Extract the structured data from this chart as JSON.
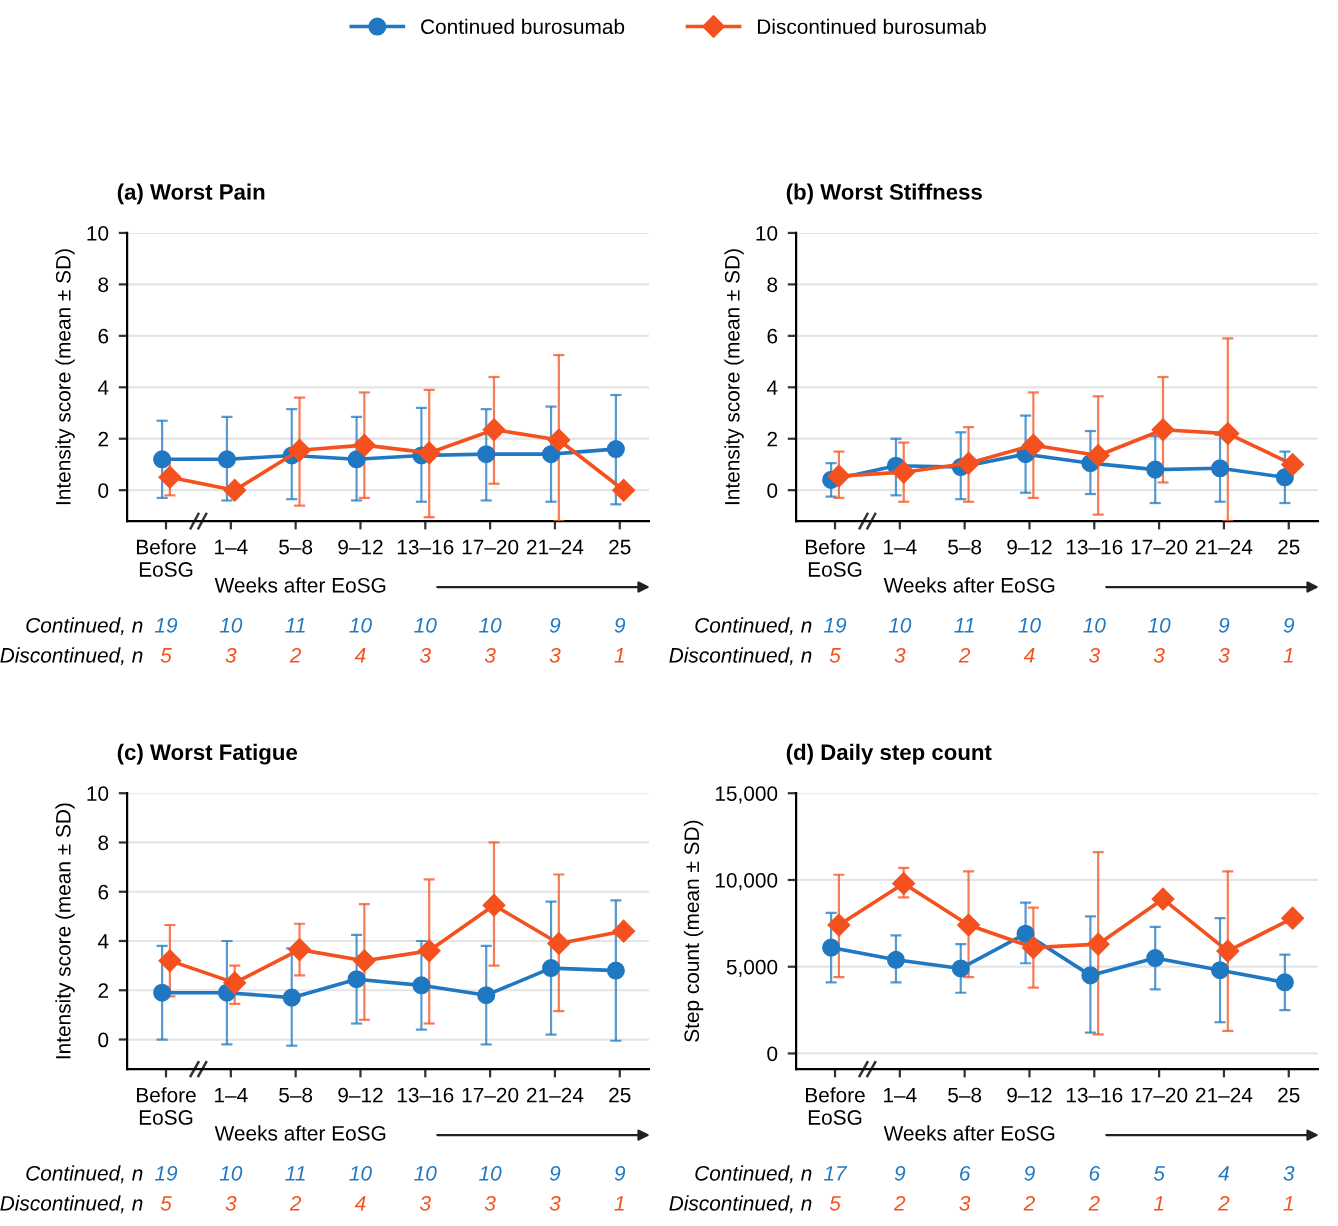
{
  "chart_data": [
    {
      "type": "line",
      "title": "(a) Worst Pain",
      "xlabel": "Weeks after EoSG",
      "ylabel": "Intensity score (mean ± SD)",
      "categories": [
        "Before\nEoSG",
        "1–4",
        "5–8",
        "9–12",
        "13–16",
        "17–20",
        "21–24",
        "25"
      ],
      "ylim": [
        -1.2,
        10
      ],
      "yticks": [
        0,
        2,
        4,
        6,
        8,
        10
      ],
      "grid": "y",
      "legend": "top",
      "series": [
        {
          "name": "Continued burosumab",
          "color": "#1f78c1",
          "marker": "circle",
          "values": [
            1.2,
            1.2,
            1.35,
            1.2,
            1.35,
            1.4,
            1.4,
            1.6
          ],
          "errors": [
            [
              -0.3,
              2.7
            ],
            [
              -0.4,
              2.85
            ],
            [
              -0.35,
              3.15
            ],
            [
              -0.4,
              2.85
            ],
            [
              -0.45,
              3.2
            ],
            [
              -0.4,
              3.15
            ],
            [
              -0.45,
              3.25
            ],
            [
              -0.55,
              3.7
            ]
          ]
        },
        {
          "name": "Discontinued burosumab",
          "color": "#f4511e",
          "marker": "diamond",
          "values": [
            0.5,
            0.0,
            1.55,
            1.75,
            1.45,
            2.35,
            1.95,
            0.0
          ],
          "errors": [
            [
              -0.2,
              1.2
            ],
            null,
            [
              -0.6,
              3.6
            ],
            [
              -0.3,
              3.8
            ],
            [
              -1.05,
              3.9
            ],
            [
              0.25,
              4.4
            ],
            [
              -1.2,
              5.25
            ],
            null
          ]
        }
      ],
      "annotations": [
        "Continued, n",
        "Discontinued, n",
        "19",
        "10",
        "11",
        "10",
        "10",
        "10",
        "9",
        "9",
        "5",
        "3",
        "2",
        "4",
        "3",
        "3",
        "3",
        "1"
      ]
    },
    {
      "type": "line",
      "title": "(b) Worst Stiffness",
      "xlabel": "Weeks after EoSG",
      "ylabel": "Intensity score (mean ± SD)",
      "categories": [
        "Before\nEoSG",
        "1–4",
        "5–8",
        "9–12",
        "13–16",
        "17–20",
        "21–24",
        "25"
      ],
      "ylim": [
        -1.2,
        10
      ],
      "yticks": [
        0,
        2,
        4,
        6,
        8,
        10
      ],
      "grid": "y",
      "series": [
        {
          "color": "#1f78c1",
          "marker": "circle",
          "values": [
            0.4,
            0.95,
            0.9,
            1.4,
            1.05,
            0.8,
            0.85,
            0.5
          ],
          "errors": [
            [
              -0.25,
              1.05
            ],
            [
              -0.2,
              2.0
            ],
            [
              -0.35,
              2.25
            ],
            [
              -0.1,
              2.9
            ],
            [
              -0.15,
              2.3
            ],
            [
              -0.5,
              2.1
            ],
            [
              -0.45,
              2.15
            ],
            [
              -0.5,
              1.5
            ]
          ]
        },
        {
          "color": "#f4511e",
          "marker": "diamond",
          "values": [
            0.55,
            0.7,
            1.05,
            1.75,
            1.35,
            2.35,
            2.2,
            1.0
          ],
          "errors": [
            [
              -0.3,
              1.5
            ],
            [
              -0.45,
              1.85
            ],
            [
              -0.45,
              2.45
            ],
            [
              -0.3,
              3.8
            ],
            [
              -0.95,
              3.65
            ],
            [
              0.3,
              4.4
            ],
            [
              -1.2,
              5.9
            ],
            null
          ]
        }
      ],
      "annotations": [
        "Continued, n",
        "Discontinued, n",
        "19",
        "10",
        "11",
        "10",
        "10",
        "10",
        "9",
        "9",
        "5",
        "3",
        "2",
        "4",
        "3",
        "3",
        "3",
        "1"
      ]
    },
    {
      "type": "line",
      "title": "(c) Worst Fatigue",
      "xlabel": "Weeks after EoSG",
      "ylabel": "Intensity score (mean ± SD)",
      "categories": [
        "Before\nEoSG",
        "1–4",
        "5–8",
        "9–12",
        "13–16",
        "17–20",
        "21–24",
        "25"
      ],
      "ylim": [
        -1.2,
        10
      ],
      "yticks": [
        0,
        2,
        4,
        6,
        8,
        10
      ],
      "grid": "y",
      "series": [
        {
          "color": "#1f78c1",
          "marker": "circle",
          "values": [
            1.9,
            1.9,
            1.7,
            2.45,
            2.2,
            1.8,
            2.9,
            2.8
          ],
          "errors": [
            [
              0.0,
              3.8
            ],
            [
              -0.2,
              4.0
            ],
            [
              -0.25,
              3.7
            ],
            [
              0.65,
              4.25
            ],
            [
              0.4,
              4.0
            ],
            [
              -0.2,
              3.8
            ],
            [
              0.2,
              5.6
            ],
            [
              -0.05,
              5.65
            ]
          ]
        },
        {
          "color": "#f4511e",
          "marker": "diamond",
          "values": [
            3.2,
            2.3,
            3.65,
            3.2,
            3.6,
            5.45,
            3.9,
            4.4
          ],
          "errors": [
            [
              1.75,
              4.65
            ],
            [
              1.45,
              3.0
            ],
            [
              2.6,
              4.7
            ],
            [
              0.8,
              5.5
            ],
            [
              0.65,
              6.5
            ],
            [
              3.0,
              8.0
            ],
            [
              1.15,
              6.7
            ],
            null
          ]
        }
      ],
      "annotations": [
        "Continued, n",
        "Discontinued, n",
        "19",
        "10",
        "11",
        "10",
        "10",
        "10",
        "9",
        "9",
        "5",
        "3",
        "2",
        "4",
        "3",
        "3",
        "3",
        "1"
      ]
    },
    {
      "type": "line",
      "title": "(d) Daily step count",
      "xlabel": "Weeks after EoSG",
      "ylabel": "Step count (mean ± SD)",
      "categories": [
        "Before\nEoSG",
        "1–4",
        "5–8",
        "9–12",
        "13–16",
        "17–20",
        "21–24",
        "25"
      ],
      "ylim": [
        -900,
        15000
      ],
      "yticks": [
        0,
        {
          "value": 5000,
          "label": "5,000"
        },
        {
          "value": 10000,
          "label": "10,000"
        },
        {
          "value": 15000,
          "label": "15,000"
        }
      ],
      "grid": "y",
      "series": [
        {
          "color": "#1f78c1",
          "marker": "circle",
          "values": [
            6100,
            5400,
            4900,
            6900,
            4500,
            5500,
            4800,
            4100
          ],
          "errors": [
            [
              4100,
              8100
            ],
            [
              4100,
              6800
            ],
            [
              3500,
              6300
            ],
            [
              5200,
              8700
            ],
            [
              1200,
              7900
            ],
            [
              3700,
              7300
            ],
            [
              1800,
              7800
            ],
            [
              2500,
              5700
            ]
          ]
        },
        {
          "color": "#f4511e",
          "marker": "diamond",
          "values": [
            7400,
            9800,
            7400,
            6100,
            6300,
            8900,
            5900,
            7800
          ],
          "errors": [
            [
              4400,
              10300
            ],
            [
              9000,
              10700
            ],
            [
              4400,
              10500
            ],
            [
              3800,
              8400
            ],
            [
              1100,
              11600
            ],
            null,
            [
              1300,
              10500
            ],
            null
          ]
        }
      ],
      "annotations": [
        "Continued, n",
        "Discontinued, n",
        "17",
        "9",
        "6",
        "9",
        "6",
        "5",
        "4",
        "3",
        "5",
        "2",
        "3",
        "2",
        "2",
        "1",
        "2",
        "1"
      ]
    }
  ]
}
